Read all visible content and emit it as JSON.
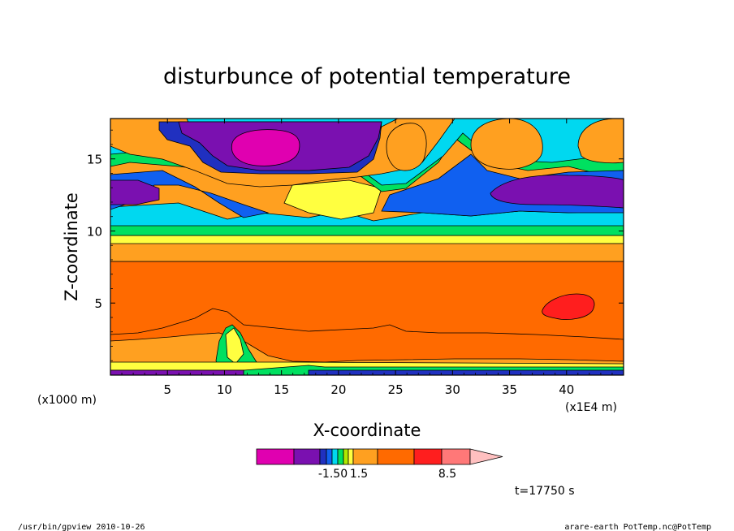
{
  "chart_data": {
    "type": "heatmap",
    "title": "disturbunce of potential temperature",
    "xlabel": "X-coordinate",
    "ylabel": "Z-coordinate",
    "x_unit_left": "(x1000 m)",
    "x_unit_right": "(x1E4 m)",
    "xlim": [
      0,
      45
    ],
    "ylim": [
      0,
      17.8
    ],
    "x_ticks": [
      "5",
      "10",
      "15",
      "20",
      "25",
      "30",
      "35",
      "40"
    ],
    "y_ticks": [
      "5",
      "10",
      "15"
    ],
    "x_tick_values": [
      5,
      10,
      15,
      20,
      25,
      30,
      35,
      40
    ],
    "y_tick_values": [
      5,
      10,
      15
    ],
    "colorbar": {
      "labels": [
        "-1.50",
        "1.5",
        "8.5"
      ],
      "colors": [
        "#e000b0",
        "#7a10b0",
        "#2030c0",
        "#1060f0",
        "#00d8f0",
        "#00e060",
        "#b0e800",
        "#ffff40",
        "#ffa020",
        "#ff6a00",
        "#ff1e1e",
        "#ff7878",
        "#ffc0c0"
      ]
    },
    "time_label": "t=17750 s",
    "grid": false
  },
  "footer": {
    "left": "/usr/bin/gpview  2010-10-26",
    "right": "arare-earth_PotTemp.nc@PotTemp"
  }
}
